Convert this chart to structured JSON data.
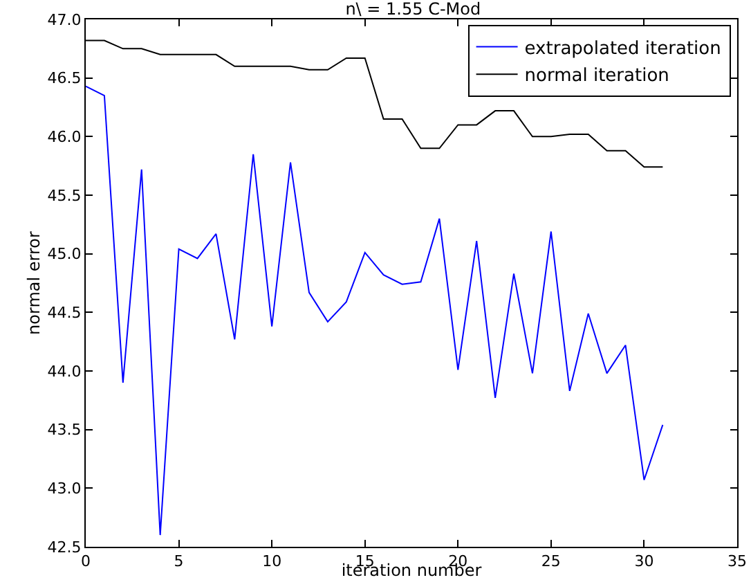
{
  "chart_data": {
    "type": "line",
    "title": "n\\ = 1.55 C-Mod",
    "xlabel": "iteration number",
    "ylabel": "normal error",
    "x": [
      0,
      1,
      2,
      3,
      4,
      5,
      6,
      7,
      8,
      9,
      10,
      11,
      12,
      13,
      14,
      15,
      16,
      17,
      18,
      19,
      20,
      21,
      22,
      23,
      24,
      25,
      26,
      27,
      28,
      29,
      30,
      31
    ],
    "series": [
      {
        "name": "extrapolated iteration",
        "color": "#0000ff",
        "values": [
          46.43,
          46.35,
          43.9,
          45.72,
          42.6,
          45.04,
          44.96,
          45.17,
          44.27,
          45.85,
          44.38,
          45.78,
          44.67,
          44.42,
          44.59,
          45.01,
          44.82,
          44.74,
          44.76,
          45.3,
          44.01,
          45.11,
          43.77,
          44.83,
          43.98,
          45.19,
          43.83,
          44.49,
          43.98,
          44.22,
          43.07,
          43.54
        ]
      },
      {
        "name": "normal iteration",
        "color": "#000000",
        "values": [
          46.82,
          46.82,
          46.75,
          46.75,
          46.7,
          46.7,
          46.7,
          46.7,
          46.6,
          46.6,
          46.6,
          46.6,
          46.57,
          46.57,
          46.67,
          46.67,
          46.15,
          46.15,
          45.9,
          45.9,
          46.1,
          46.1,
          46.22,
          46.22,
          46.0,
          46.0,
          46.02,
          46.02,
          45.88,
          45.88,
          45.74,
          45.74
        ]
      }
    ],
    "xlim": [
      0,
      35
    ],
    "xticks": [
      0,
      5,
      10,
      15,
      20,
      25,
      30,
      35
    ],
    "ylim": [
      42.5,
      47.0
    ],
    "yticks": [
      {
        "value": 42.5,
        "label": "42.5"
      },
      {
        "value": 43,
        "label": "43.0"
      },
      {
        "value": 43.5,
        "label": "43.5"
      },
      {
        "value": 44,
        "label": "44.0"
      },
      {
        "value": 44.5,
        "label": "44.5"
      },
      {
        "value": 45,
        "label": "45.0"
      },
      {
        "value": 45.5,
        "label": "45.5"
      },
      {
        "value": 46,
        "label": "46.0"
      },
      {
        "value": 46.5,
        "label": "46.5"
      },
      {
        "value": 47,
        "label": "47.0"
      }
    ],
    "legend": "top right",
    "grid": false,
    "marker": "none",
    "line_style": "solid"
  }
}
